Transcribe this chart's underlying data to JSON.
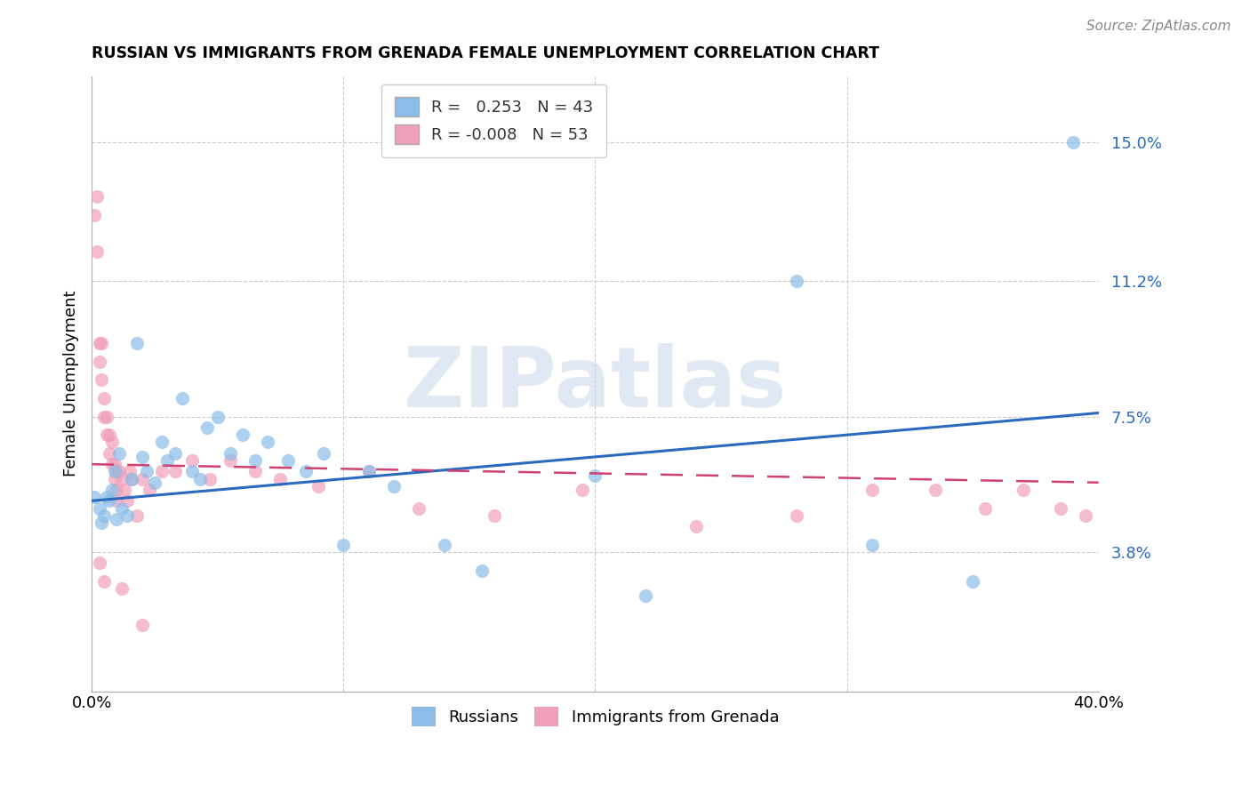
{
  "title": "RUSSIAN VS IMMIGRANTS FROM GRENADA FEMALE UNEMPLOYMENT CORRELATION CHART",
  "source": "Source: ZipAtlas.com",
  "ylabel": "Female Unemployment",
  "ytick_labels": [
    "15.0%",
    "11.2%",
    "7.5%",
    "3.8%"
  ],
  "ytick_values": [
    0.15,
    0.112,
    0.075,
    0.038
  ],
  "xlim": [
    0.0,
    0.4
  ],
  "ylim": [
    0.0,
    0.168
  ],
  "r1": 0.253,
  "n1": 43,
  "r2": -0.008,
  "n2": 53,
  "color_russian": "#8bbde8",
  "color_grenada": "#f0a0b8",
  "color_trendline1": "#2a6abf",
  "color_trendline2": "#d04070",
  "watermark": "ZIPatlas",
  "trendline1_y0": 0.052,
  "trendline1_y1": 0.076,
  "trendline2_y0": 0.062,
  "trendline2_y1": 0.057,
  "russians_x": [
    0.001,
    0.003,
    0.004,
    0.005,
    0.006,
    0.007,
    0.008,
    0.009,
    0.01,
    0.011,
    0.012,
    0.014,
    0.016,
    0.018,
    0.02,
    0.022,
    0.025,
    0.028,
    0.03,
    0.033,
    0.036,
    0.04,
    0.043,
    0.046,
    0.05,
    0.055,
    0.06,
    0.065,
    0.07,
    0.078,
    0.085,
    0.092,
    0.1,
    0.11,
    0.12,
    0.14,
    0.155,
    0.2,
    0.22,
    0.28,
    0.31,
    0.35,
    0.39
  ],
  "russians_y": [
    0.053,
    0.05,
    0.046,
    0.048,
    0.053,
    0.052,
    0.055,
    0.06,
    0.047,
    0.065,
    0.05,
    0.048,
    0.058,
    0.095,
    0.064,
    0.06,
    0.057,
    0.068,
    0.063,
    0.065,
    0.08,
    0.06,
    0.058,
    0.072,
    0.075,
    0.065,
    0.07,
    0.063,
    0.068,
    0.063,
    0.06,
    0.065,
    0.04,
    0.06,
    0.056,
    0.04,
    0.033,
    0.059,
    0.026,
    0.112,
    0.04,
    0.03,
    0.15
  ],
  "grenada_x": [
    0.001,
    0.002,
    0.002,
    0.003,
    0.003,
    0.004,
    0.004,
    0.005,
    0.005,
    0.006,
    0.006,
    0.007,
    0.007,
    0.008,
    0.008,
    0.009,
    0.009,
    0.01,
    0.01,
    0.01,
    0.011,
    0.012,
    0.013,
    0.014,
    0.015,
    0.016,
    0.018,
    0.02,
    0.023,
    0.028,
    0.033,
    0.04,
    0.047,
    0.055,
    0.065,
    0.075,
    0.09,
    0.11,
    0.13,
    0.16,
    0.195,
    0.24,
    0.28,
    0.31,
    0.335,
    0.355,
    0.37,
    0.385,
    0.395,
    0.003,
    0.005,
    0.012,
    0.02
  ],
  "grenada_y": [
    0.13,
    0.12,
    0.135,
    0.09,
    0.095,
    0.085,
    0.095,
    0.08,
    0.075,
    0.07,
    0.075,
    0.065,
    0.07,
    0.062,
    0.068,
    0.058,
    0.062,
    0.055,
    0.06,
    0.052,
    0.06,
    0.058,
    0.055,
    0.052,
    0.06,
    0.058,
    0.048,
    0.058,
    0.055,
    0.06,
    0.06,
    0.063,
    0.058,
    0.063,
    0.06,
    0.058,
    0.056,
    0.06,
    0.05,
    0.048,
    0.055,
    0.045,
    0.048,
    0.055,
    0.055,
    0.05,
    0.055,
    0.05,
    0.048,
    0.035,
    0.03,
    0.028,
    0.018
  ]
}
